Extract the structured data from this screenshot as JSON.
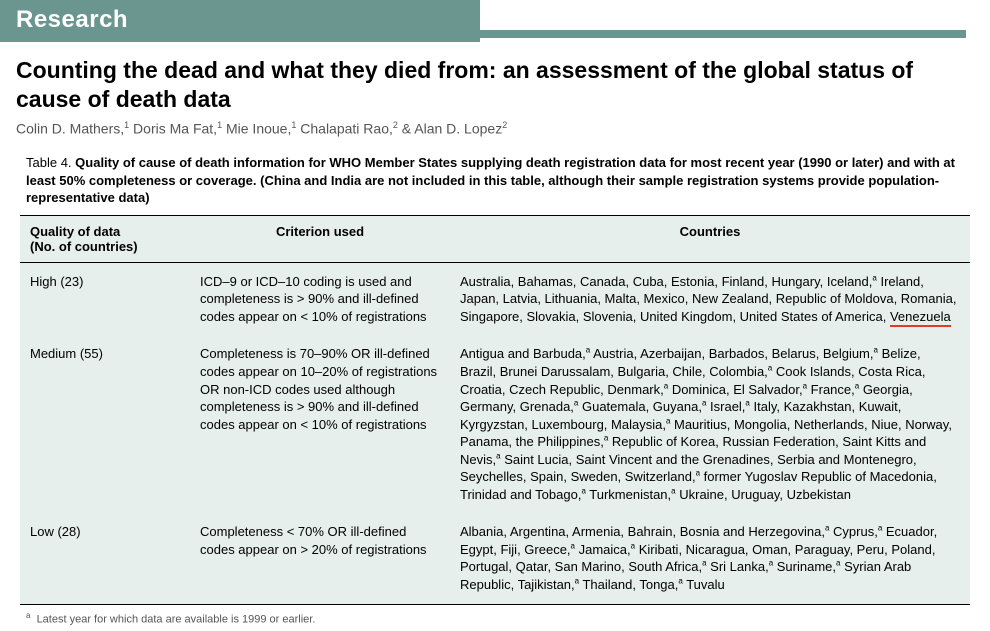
{
  "section_label": "Research",
  "article_title": "Counting the dead and what they died from: an assessment of the global status of cause of death data",
  "authors_html": "Colin D. Mathers,<sup>1</sup> Doris Ma Fat,<sup>1</sup> Mie Inoue,<sup>1</sup> Chalapati Rao,<sup>2</sup> & Alan D. Lopez<sup>2</sup>",
  "table": {
    "caption_lead": "Table 4. ",
    "caption_body": "Quality of cause of death information for WHO Member States supplying death registration data for most recent year (1990 or later) and with at least 50% completeness or coverage. (China and India are not included in this table, although their sample registration systems provide population-representative data)",
    "headers": {
      "quality": "Quality of data\n(No. of countries)",
      "criterion": "Criterion used",
      "countries": "Countries"
    },
    "rows": [
      {
        "quality": "High (23)",
        "criterion": "ICD–9 or ICD–10 coding is used and completeness is > 90% and ill-defined codes appear on < 10% of registrations",
        "countries_html": "Australia, Bahamas, Canada, Cuba, Estonia, Finland, Hungary, Iceland,<sup>a</sup> Ireland, Japan, Latvia, Lithuania, Malta, Mexico, New Zealand, Republic of Moldova, Romania, Singapore, Slovakia, Slovenia, United Kingdom, United States of America, <span class=\"underline-red\">Venezuela</span>"
      },
      {
        "quality": "Medium (55)",
        "criterion": "Completeness is 70–90% OR ill-defined codes appear on 10–20% of registrations OR non-ICD codes used although completeness is > 90% and ill-defined codes appear on < 10% of registrations",
        "countries_html": "Antigua and Barbuda,<sup>a</sup> Austria, Azerbaijan, Barbados, Belarus, Belgium,<sup>a</sup> Belize, Brazil, Brunei Darussalam, Bulgaria, Chile, Colombia,<sup>a</sup> Cook Islands, Costa Rica, Croatia, Czech Republic, Denmark,<sup>a</sup> Dominica, El Salvador,<sup>a</sup> France,<sup>a</sup> Georgia, Germany, Grenada,<sup>a</sup> Guatemala, Guyana,<sup>a</sup> Israel,<sup>a</sup> Italy, Kazakhstan, Kuwait, Kyrgyzstan, Luxembourg, Malaysia,<sup>a</sup> Mauritius, Mongolia, Netherlands, Niue, Norway, Panama, the Philippines,<sup>a</sup> Republic of Korea, Russian Federation, Saint Kitts and Nevis,<sup>a</sup> Saint Lucia, Saint Vincent and the Grenadines, Serbia and Montenegro, Seychelles, Spain, Sweden, Switzerland,<sup>a</sup> former Yugoslav Republic of Macedonia, Trinidad and Tobago,<sup>a</sup> Turkmenistan,<sup>a</sup> Ukraine, Uruguay, Uzbekistan"
      },
      {
        "quality": "Low (28)",
        "criterion": "Completeness < 70% OR ill-defined codes appear on > 20% of registrations",
        "countries_html": "Albania, Argentina, Armenia, Bahrain, Bosnia and Herzegovina,<sup>a</sup> Cyprus,<sup>a</sup> Ecuador, Egypt, Fiji, Greece,<sup>a</sup> Jamaica,<sup>a</sup> Kiribati, Nicaragua, Oman, Paraguay, Peru, Poland, Portugal, Qatar, San Marino, South Africa,<sup>a</sup> Sri Lanka,<sup>a</sup> Suriname,<sup>a</sup> Syrian Arab Republic, Tajikistan,<sup>a</sup> Thailand, Tonga,<sup>a</sup> Tuvalu"
      }
    ],
    "footnote_html": "<sup>a</sup>&nbsp;&nbsp;Latest year for which data are available is 1999 or earlier."
  },
  "colors": {
    "banner_bg": "#6b9690",
    "banner_text": "#ffffff",
    "table_bg": "#e6efec",
    "underline": "#e33a2f",
    "text": "#000000",
    "muted": "#555555"
  }
}
